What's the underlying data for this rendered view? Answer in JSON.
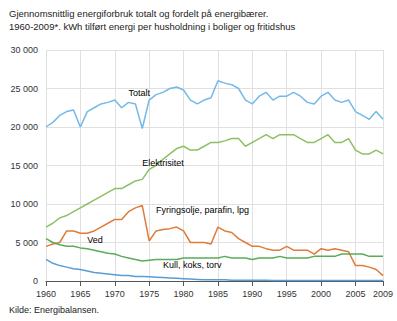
{
  "chart_data": {
    "type": "line",
    "title": "Gjennomsnittlig energiforbruk totalt og fordelt på energibærer.",
    "subtitle": "1960-2009*. kWh tilført energi per husholdning i boliger og fritidshus",
    "source": "Kilde: Energibalansen.",
    "grid": true,
    "x": [
      1960,
      1961,
      1962,
      1963,
      1964,
      1965,
      1966,
      1967,
      1968,
      1969,
      1970,
      1971,
      1972,
      1973,
      1974,
      1975,
      1976,
      1977,
      1978,
      1979,
      1980,
      1981,
      1982,
      1983,
      1984,
      1985,
      1986,
      1987,
      1988,
      1989,
      1990,
      1991,
      1992,
      1993,
      1994,
      1995,
      1996,
      1997,
      1998,
      1999,
      2000,
      2001,
      2002,
      2003,
      2004,
      2005,
      2006,
      2007,
      2008,
      2009
    ],
    "xlim": [
      1960,
      2009
    ],
    "xticks": [
      1960,
      1965,
      1970,
      1975,
      1980,
      1985,
      1990,
      1995,
      2000,
      2005,
      2009
    ],
    "ylim": [
      0,
      30000
    ],
    "yticks": [
      0,
      {
        "value": 5000,
        "label": "5 000"
      },
      {
        "value": 10000,
        "label": "10 000"
      },
      {
        "value": 15000,
        "label": "15 000"
      },
      {
        "value": 20000,
        "label": "20 000"
      },
      {
        "value": 25000,
        "label": "25 000"
      },
      {
        "value": 30000,
        "label": "30 000"
      }
    ],
    "series": [
      {
        "name": "Totalt",
        "color": "#74b9e8",
        "values": [
          20000,
          20600,
          21500,
          22000,
          22200,
          20000,
          22000,
          22500,
          23000,
          23200,
          23500,
          22500,
          23200,
          23000,
          19800,
          23500,
          24200,
          24500,
          25000,
          25200,
          24800,
          23500,
          23000,
          23500,
          23800,
          26000,
          25700,
          25500,
          25000,
          23500,
          23000,
          24000,
          24500,
          23500,
          24000,
          24000,
          24500,
          24000,
          23200,
          23000,
          24000,
          24500,
          23500,
          23200,
          23500,
          22000,
          21500,
          21000,
          22000,
          21000
        ]
      },
      {
        "name": "Elektrisitet",
        "color": "#8dc063",
        "values": [
          7000,
          7500,
          8200,
          8500,
          9000,
          9500,
          10000,
          10500,
          11000,
          11500,
          12000,
          12000,
          12500,
          13000,
          13200,
          14500,
          15000,
          15800,
          16500,
          17200,
          17500,
          17000,
          17000,
          17500,
          18000,
          18000,
          18200,
          18500,
          18500,
          17500,
          18000,
          18500,
          19000,
          18500,
          19000,
          19000,
          19000,
          18500,
          18000,
          18000,
          18500,
          19000,
          18000,
          18000,
          18500,
          17000,
          16500,
          16500,
          17000,
          16500
        ]
      },
      {
        "name": "Fyringsolje, parafin, lpg",
        "color": "#e07b39",
        "values": [
          4500,
          4800,
          5000,
          6500,
          6500,
          6200,
          6200,
          6500,
          7000,
          7500,
          8000,
          8000,
          9000,
          9500,
          9800,
          5200,
          6500,
          6700,
          6800,
          7000,
          6500,
          5000,
          5000,
          5000,
          4800,
          7000,
          6500,
          6300,
          5500,
          5000,
          4500,
          4500,
          4200,
          4000,
          4000,
          4500,
          4000,
          4000,
          4000,
          3500,
          4200,
          4000,
          4200,
          4000,
          3800,
          2000,
          2000,
          1800,
          1500,
          700
        ]
      },
      {
        "name": "Ved",
        "color": "#5aab5a",
        "values": [
          5500,
          5000,
          4700,
          4500,
          4500,
          4300,
          4200,
          4000,
          3800,
          3600,
          3500,
          3200,
          3000,
          2800,
          2600,
          2700,
          2800,
          2800,
          2800,
          2800,
          3000,
          3000,
          3000,
          3000,
          3000,
          3000,
          3200,
          3000,
          3000,
          3000,
          2800,
          3000,
          3000,
          3000,
          3200,
          3000,
          3000,
          3000,
          3000,
          3200,
          3200,
          3200,
          3200,
          3500,
          3500,
          3500,
          3500,
          3200,
          3200,
          3200
        ]
      },
      {
        "name": "Kull, koks, torv",
        "color": "#5b9bd5",
        "values": [
          2800,
          2300,
          2000,
          1800,
          1600,
          1500,
          1300,
          1100,
          1000,
          900,
          800,
          700,
          700,
          600,
          600,
          550,
          500,
          450,
          400,
          350,
          300,
          250,
          200,
          150,
          150,
          150,
          150,
          100,
          100,
          100,
          100,
          100,
          100,
          50,
          50,
          50,
          50,
          50,
          50,
          50,
          50,
          50,
          50,
          50,
          50,
          50,
          50,
          50,
          50,
          50
        ]
      }
    ],
    "annotations": [
      {
        "text": "Totalt",
        "x": 1972,
        "y": 23800
      },
      {
        "text": "Elektrisitet",
        "x": 1974,
        "y": 14800
      },
      {
        "text": "Fyringsolje, parafin, lpg",
        "x": 1976,
        "y": 8700
      },
      {
        "text": "Ved",
        "x": 1966,
        "y": 4700
      },
      {
        "text": "Kull, koks, torv",
        "x": 1977,
        "y": 1500
      }
    ]
  }
}
